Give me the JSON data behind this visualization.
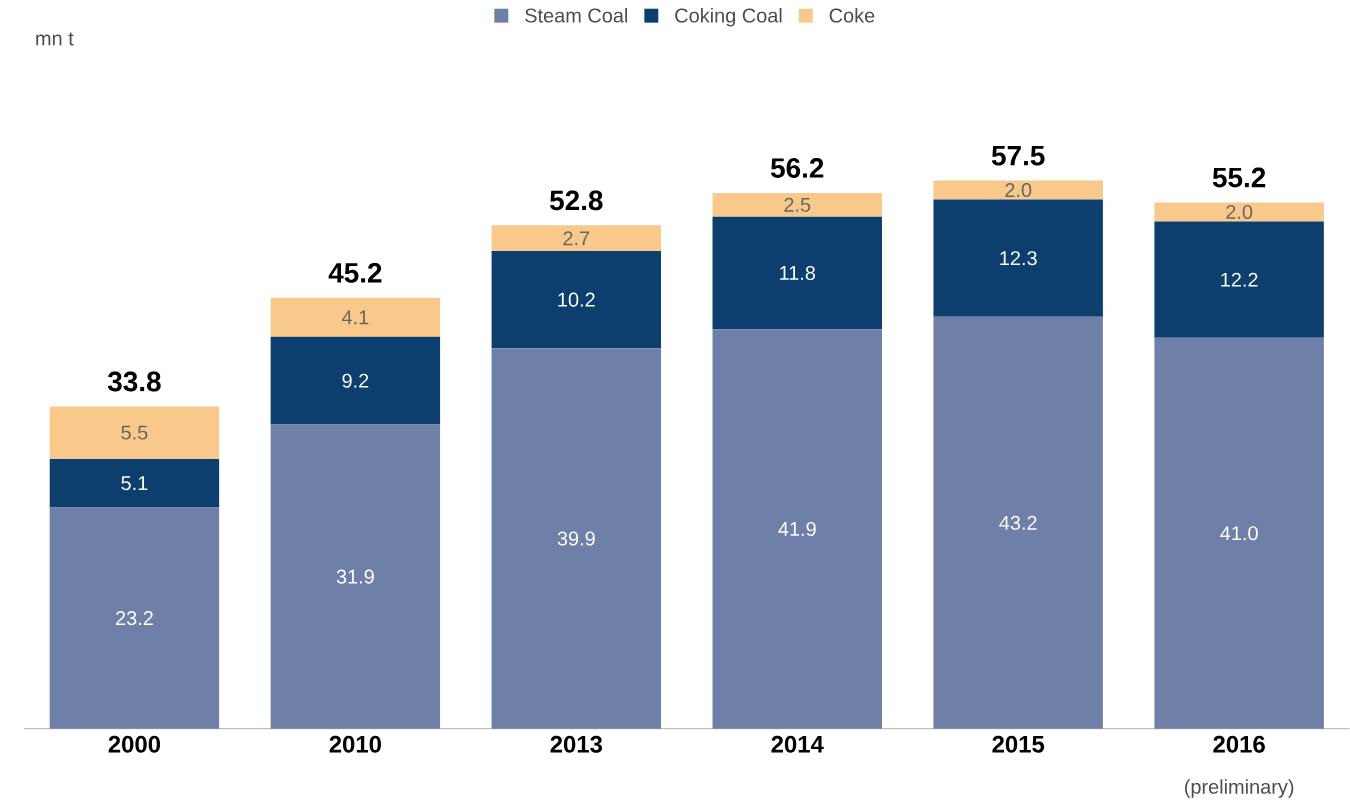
{
  "chart_data": {
    "type": "bar",
    "stacked": true,
    "categories": [
      "2000",
      "2010",
      "2013",
      "2014",
      "2015",
      "2016"
    ],
    "series": [
      {
        "name": "Steam Coal",
        "color": "#6e80a8",
        "values": [
          23.2,
          31.9,
          39.9,
          41.9,
          43.2,
          41.0
        ],
        "value_labels": [
          "23.2",
          "31.9",
          "39.9",
          "41.9",
          "43.2",
          "41.0"
        ]
      },
      {
        "name": "Coking Coal",
        "color": "#0d3f6e",
        "values": [
          5.1,
          9.2,
          10.2,
          11.8,
          12.3,
          12.2
        ],
        "value_labels": [
          "5.1",
          "9.2",
          "10.2",
          "11.8",
          "12.3",
          "12.2"
        ]
      },
      {
        "name": "Coke",
        "color": "#f8c98a",
        "values": [
          5.5,
          4.1,
          2.7,
          2.5,
          2.0,
          2.0
        ],
        "value_labels": [
          "5.5",
          "4.1",
          "2.7",
          "2.5",
          "2.0",
          "2.0"
        ]
      }
    ],
    "totals": [
      "33.8",
      "45.2",
      "52.8",
      "56.2",
      "57.5",
      "55.2"
    ],
    "annotations": [
      "mn t",
      "(preliminary)"
    ],
    "legend": "top"
  }
}
